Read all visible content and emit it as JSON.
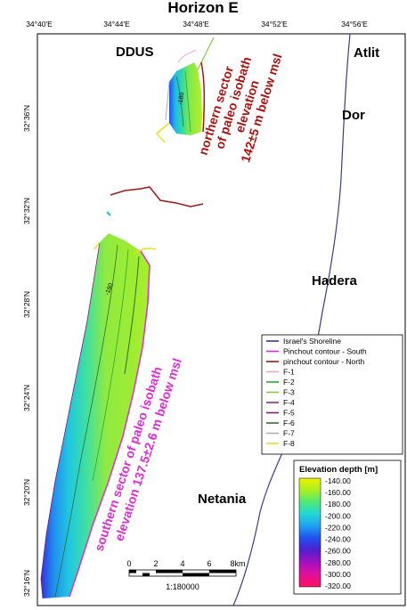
{
  "title": "Horizon E",
  "longitude_ticks": [
    "34°40'E",
    "34°44'E",
    "34°48'E",
    "34°52'E",
    "34°56'E"
  ],
  "latitude_ticks": [
    "32°36'N",
    "32°32'N",
    "32°28'N",
    "32°24'N",
    "32°20'N",
    "32°16'N"
  ],
  "places": {
    "ddus": "DDUS",
    "atlit": "Atlit",
    "dor": "Dor",
    "hadera": "Hadera",
    "netania": "Netania"
  },
  "annotations": {
    "north": [
      "northern sector",
      "of paleo isobath",
      "elevation",
      "142±5 m below msl"
    ],
    "south": [
      "southern sector of paleo isobath",
      "elevation 137.5±2.6 m below msl"
    ]
  },
  "contour_labels": [
    "-180",
    "-180"
  ],
  "legend": {
    "items": [
      {
        "label": "Israel's Shoreline",
        "color": "#3a3a8a"
      },
      {
        "label": "Pinchout contour - South",
        "color": "#e02ad8"
      },
      {
        "label": "pinchout contour - North",
        "color": "#a01818"
      },
      {
        "label": "F-1",
        "color": "#f4a6c8"
      },
      {
        "label": "F-2",
        "color": "#2aa82a"
      },
      {
        "label": "F-3",
        "color": "#86c940"
      },
      {
        "label": "F-4",
        "color": "#8a2a8a"
      },
      {
        "label": "F-5",
        "color": "#7a1a7a"
      },
      {
        "label": "F-6",
        "color": "#2e6e2e"
      },
      {
        "label": "F-7",
        "color": "#b0b0b0"
      },
      {
        "label": "F-8",
        "color": "#e8e020"
      }
    ]
  },
  "colorbar": {
    "title": "Elevation depth [m]",
    "values": [
      "-140.00",
      "-160.00",
      "-180.00",
      "-200.00",
      "-220.00",
      "-240.00",
      "-260.00",
      "-280.00",
      "-300.00",
      "-320.00"
    ],
    "colors": [
      "#f0f000",
      "#a8f020",
      "#50e878",
      "#20d8d8",
      "#20a0f0",
      "#2050f0",
      "#5020d0",
      "#a010c0",
      "#e010a0",
      "#ff1060"
    ]
  },
  "scalebar": {
    "ticks": [
      "0",
      "2",
      "4",
      "6",
      "8km"
    ],
    "scale": "1:180000"
  }
}
